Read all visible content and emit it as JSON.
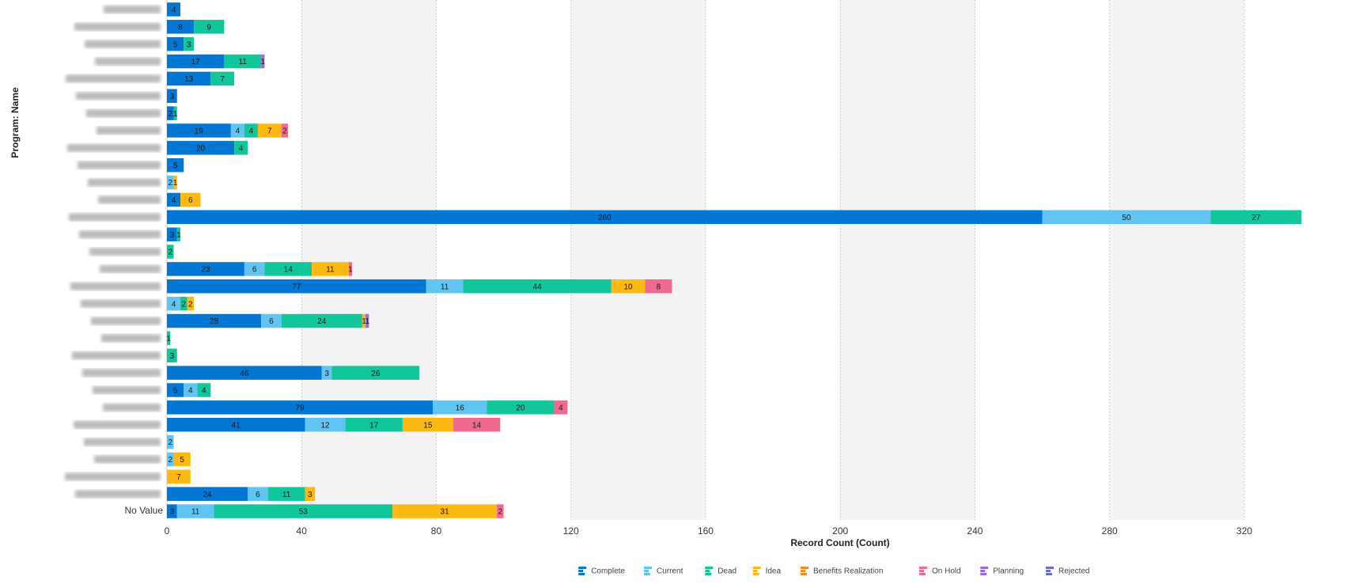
{
  "chart_data": {
    "type": "bar",
    "orientation": "horizontal",
    "stacked": true,
    "x_axis_label": "Record Count (Count)",
    "y_axis_label": "Program: Name",
    "categories": [
      null,
      null,
      null,
      null,
      null,
      null,
      null,
      null,
      null,
      null,
      null,
      null,
      null,
      null,
      null,
      null,
      null,
      null,
      null,
      null,
      null,
      null,
      null,
      null,
      null,
      null,
      null,
      null,
      null,
      "No Value"
    ],
    "series": [
      {
        "name": "Complete",
        "color": "#0176d3",
        "values": [
          4,
          8,
          5,
          17,
          13,
          3,
          2,
          19,
          20,
          5,
          null,
          4,
          260,
          3,
          null,
          23,
          77,
          null,
          28,
          null,
          null,
          46,
          5,
          79,
          41,
          null,
          null,
          null,
          24,
          3
        ]
      },
      {
        "name": "Current",
        "color": "#62c4f2",
        "values": [
          null,
          null,
          null,
          null,
          null,
          null,
          null,
          4,
          null,
          null,
          2,
          null,
          50,
          null,
          null,
          6,
          11,
          4,
          6,
          null,
          null,
          3,
          4,
          16,
          12,
          2,
          2,
          null,
          6,
          11
        ]
      },
      {
        "name": "Dead",
        "color": "#12c69b",
        "values": [
          null,
          9,
          3,
          11,
          7,
          null,
          1,
          4,
          4,
          null,
          null,
          null,
          27,
          1,
          2,
          14,
          44,
          2,
          24,
          1,
          3,
          26,
          4,
          20,
          17,
          null,
          null,
          null,
          11,
          53
        ]
      },
      {
        "name": "Idea",
        "color": "#fdb913",
        "values": [
          null,
          null,
          null,
          null,
          null,
          null,
          null,
          7,
          null,
          null,
          1,
          6,
          null,
          null,
          null,
          11,
          10,
          2,
          1,
          null,
          null,
          null,
          null,
          null,
          15,
          null,
          5,
          7,
          3,
          31
        ]
      },
      {
        "name": "Benefits Realization",
        "color": "#f38b22",
        "values": [
          null,
          null,
          null,
          null,
          null,
          null,
          null,
          null,
          null,
          null,
          null,
          null,
          null,
          null,
          null,
          null,
          null,
          null,
          null,
          null,
          null,
          null,
          null,
          null,
          null,
          null,
          null,
          null,
          null,
          null
        ]
      },
      {
        "name": "On Hold",
        "color": "#f0698f",
        "values": [
          null,
          null,
          null,
          null,
          null,
          null,
          null,
          2,
          null,
          null,
          null,
          null,
          null,
          null,
          null,
          1,
          8,
          null,
          null,
          null,
          null,
          null,
          null,
          4,
          14,
          null,
          null,
          null,
          null,
          2
        ]
      },
      {
        "name": "Planning",
        "color": "#9c6ad6",
        "values": [
          null,
          null,
          null,
          1,
          null,
          null,
          null,
          null,
          null,
          null,
          null,
          null,
          null,
          null,
          null,
          null,
          null,
          null,
          1,
          null,
          null,
          null,
          null,
          null,
          null,
          null,
          null,
          null,
          null,
          null
        ]
      },
      {
        "name": "Rejected",
        "color": "#6b6fc9",
        "values": [
          null,
          null,
          null,
          null,
          null,
          null,
          null,
          null,
          null,
          null,
          null,
          null,
          null,
          null,
          null,
          null,
          null,
          null,
          null,
          null,
          null,
          null,
          null,
          null,
          null,
          null,
          null,
          null,
          null,
          null
        ]
      }
    ],
    "xlim": [
      0,
      340
    ],
    "xticks": [
      0,
      40,
      80,
      120,
      160,
      200,
      240,
      280,
      320
    ],
    "grid": true,
    "legend": "bottom"
  }
}
